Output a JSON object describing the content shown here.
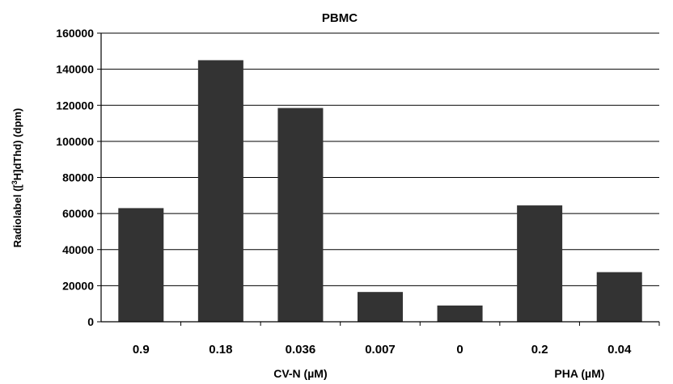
{
  "chart_data": {
    "type": "bar",
    "title": "PBMC",
    "ylabel_parts": [
      "Radiolabel ([",
      "3",
      "H]dThd) (dpm)"
    ],
    "categories": [
      "0.9",
      "0.18",
      "0.036",
      "0.007",
      "0",
      "0.2",
      "0.04"
    ],
    "values": [
      63000,
      145000,
      118500,
      16500,
      9000,
      64500,
      27500
    ],
    "group_labels": [
      {
        "text": "CV-N (µM)",
        "categories": [
          "0.9",
          "0.18",
          "0.036",
          "0.007",
          "0"
        ]
      },
      {
        "text": "PHA (µM)",
        "categories": [
          "0.2",
          "0.04"
        ]
      }
    ],
    "ylim": [
      0,
      160000
    ],
    "yticks": [
      "0",
      "20000",
      "40000",
      "60000",
      "80000",
      "100000",
      "120000",
      "140000",
      "160000"
    ],
    "grid": true,
    "bar_color": "#333333"
  }
}
